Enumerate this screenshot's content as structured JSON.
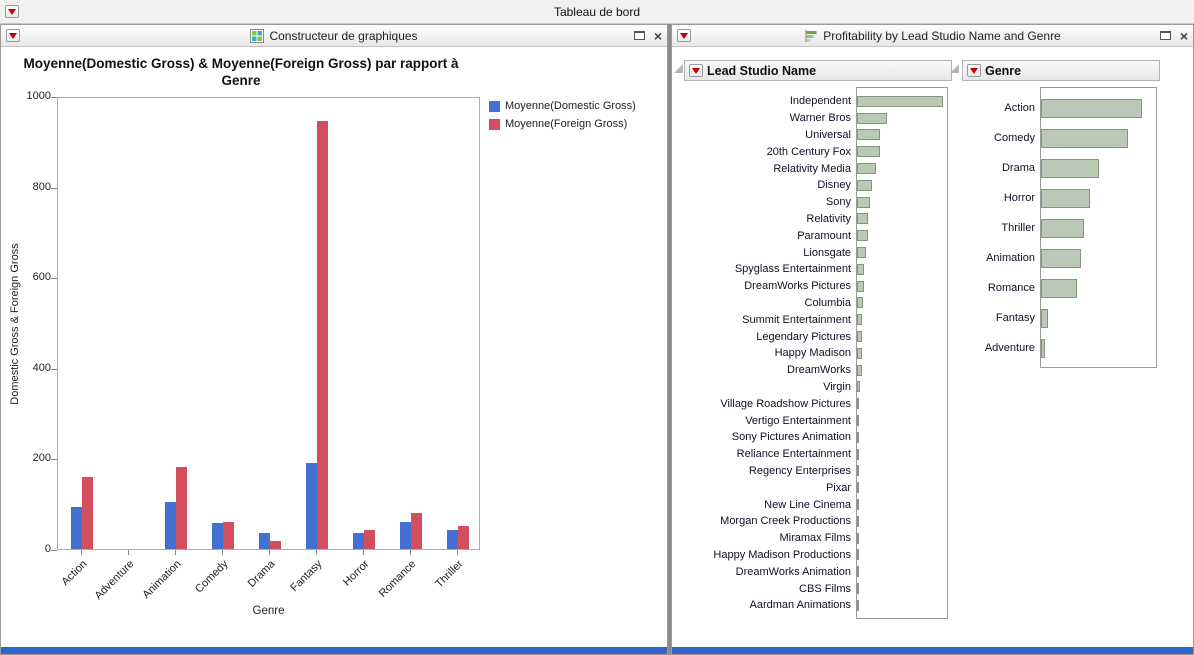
{
  "window": {
    "title": "Tableau de bord"
  },
  "left_panel": {
    "title": "Constructeur de graphiques",
    "chart_title_line1": "Moyenne(Domestic Gross) & Moyenne(Foreign Gross) par rapport à",
    "chart_title_line2": "Genre"
  },
  "right_panel": {
    "title": "Profitability by Lead Studio Name and Genre"
  },
  "chart_data": [
    {
      "type": "bar",
      "title": "Moyenne(Domestic Gross) & Moyenne(Foreign Gross) par rapport à Genre",
      "categories": [
        "Action",
        "Adventure",
        "Animation",
        "Comedy",
        "Drama",
        "Fantasy",
        "Horror",
        "Romance",
        "Thriller"
      ],
      "series": [
        {
          "name": "Moyenne(Domestic Gross)",
          "color": "#4470d2",
          "values": [
            93,
            0,
            104,
            57,
            35,
            190,
            35,
            60,
            42
          ]
        },
        {
          "name": "Moyenne(Foreign Gross)",
          "color": "#d44f5e",
          "values": [
            159,
            0,
            181,
            60,
            18,
            945,
            42,
            80,
            50
          ]
        }
      ],
      "xlabel": "Genre",
      "ylabel": "Domestic Gross & Foreign Gross",
      "ylim": [
        0,
        1000
      ],
      "yticks": [
        0,
        200,
        400,
        600,
        800,
        1000
      ],
      "legend_position": "top-right",
      "grid": false
    },
    {
      "type": "bar-horizontal",
      "title": "Lead Studio Name",
      "categories": [
        "Independent",
        "Warner Bros",
        "Universal",
        "20th Century Fox",
        "Relativity Media",
        "Disney",
        "Sony",
        "Relativity",
        "Paramount",
        "Lionsgate",
        "Spyglass Entertainment",
        "DreamWorks Pictures",
        "Columbia",
        "Summit Entertainment",
        "Legendary Pictures",
        "Happy Madison",
        "DreamWorks",
        "Virgin",
        "Village Roadshow Pictures",
        "Vertigo Entertainment",
        "Sony Pictures Animation",
        "Reliance Entertainment",
        "Regency Enterprises",
        "Pixar",
        "New Line Cinema",
        "Morgan Creek Productions",
        "Miramax Films",
        "Happy Madison Productions",
        "DreamWorks Animation",
        "CBS Films",
        "Aardman Animations"
      ],
      "values": [
        95,
        33,
        26,
        26,
        21,
        17,
        14,
        12,
        12,
        10,
        8,
        8,
        7,
        6,
        6,
        5,
        5,
        3,
        2.5,
        2.5,
        2,
        2,
        2,
        1.5,
        1.5,
        1.2,
        1,
        1,
        0.8,
        0.6,
        0.5
      ],
      "xlim": [
        0,
        100
      ],
      "bar_color": "#b9c9b6",
      "bar_border": "#85957f"
    },
    {
      "type": "bar-horizontal",
      "title": "Genre",
      "categories": [
        "Action",
        "Comedy",
        "Drama",
        "Horror",
        "Thriller",
        "Animation",
        "Romance",
        "Fantasy",
        "Adventure"
      ],
      "values": [
        88,
        76,
        50,
        43,
        37,
        35,
        31,
        6,
        3.5
      ],
      "xlim": [
        0,
        100
      ],
      "bar_color": "#b9c9b6",
      "bar_border": "#85957f"
    }
  ]
}
